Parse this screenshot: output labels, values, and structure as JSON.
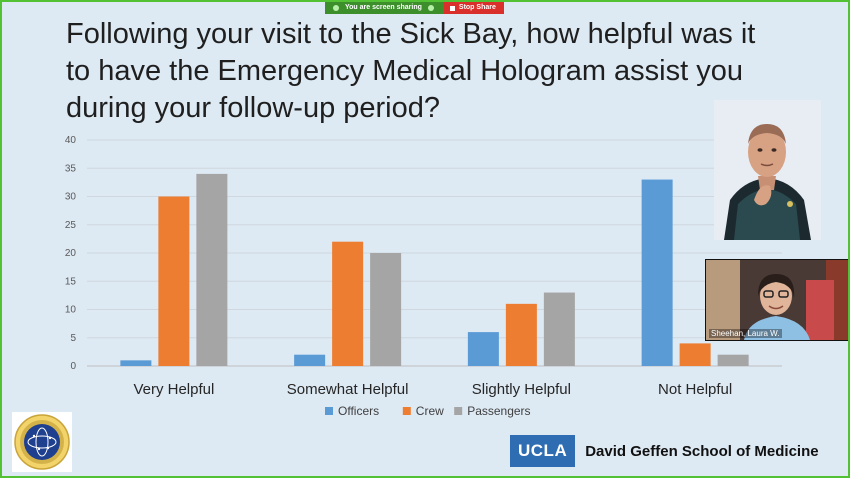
{
  "screen_share": {
    "status_text": "You are screen sharing",
    "stop_label": "Stop Share"
  },
  "slide": {
    "title": "Following your visit to the Sick Bay, how helpful was it to have the Emergency Medical Hologram assist you during your follow-up period?"
  },
  "video_tile": {
    "participant_name": "Sheehan, Laura W."
  },
  "footer": {
    "ucla_logo": "UCLA",
    "school_name": "David Geffen School of Medicine"
  },
  "colors": {
    "officers": "#5b9bd5",
    "crew": "#ed7d31",
    "passengers": "#a5a5a5",
    "share_green": "#3d8f2c",
    "stop_red": "#d9302c",
    "ucla_blue": "#2f6db3"
  },
  "chart_data": {
    "type": "bar",
    "title": "",
    "xlabel": "",
    "ylabel": "",
    "categories": [
      "Very Helpful",
      "Somewhat Helpful",
      "Slightly Helpful",
      "Not Helpful"
    ],
    "series": [
      {
        "name": "Officers",
        "values": [
          1,
          2,
          6,
          33
        ],
        "color": "#5b9bd5"
      },
      {
        "name": "Crew",
        "values": [
          30,
          22,
          11,
          4
        ],
        "color": "#ed7d31"
      },
      {
        "name": "Passengers",
        "values": [
          34,
          20,
          13,
          2
        ],
        "color": "#a5a5a5"
      }
    ],
    "ylim": [
      0,
      40
    ],
    "yticks": [
      "0",
      "5",
      "10",
      "15",
      "20",
      "25",
      "30",
      "35",
      "40"
    ],
    "grid": true,
    "legend": "bottom"
  }
}
